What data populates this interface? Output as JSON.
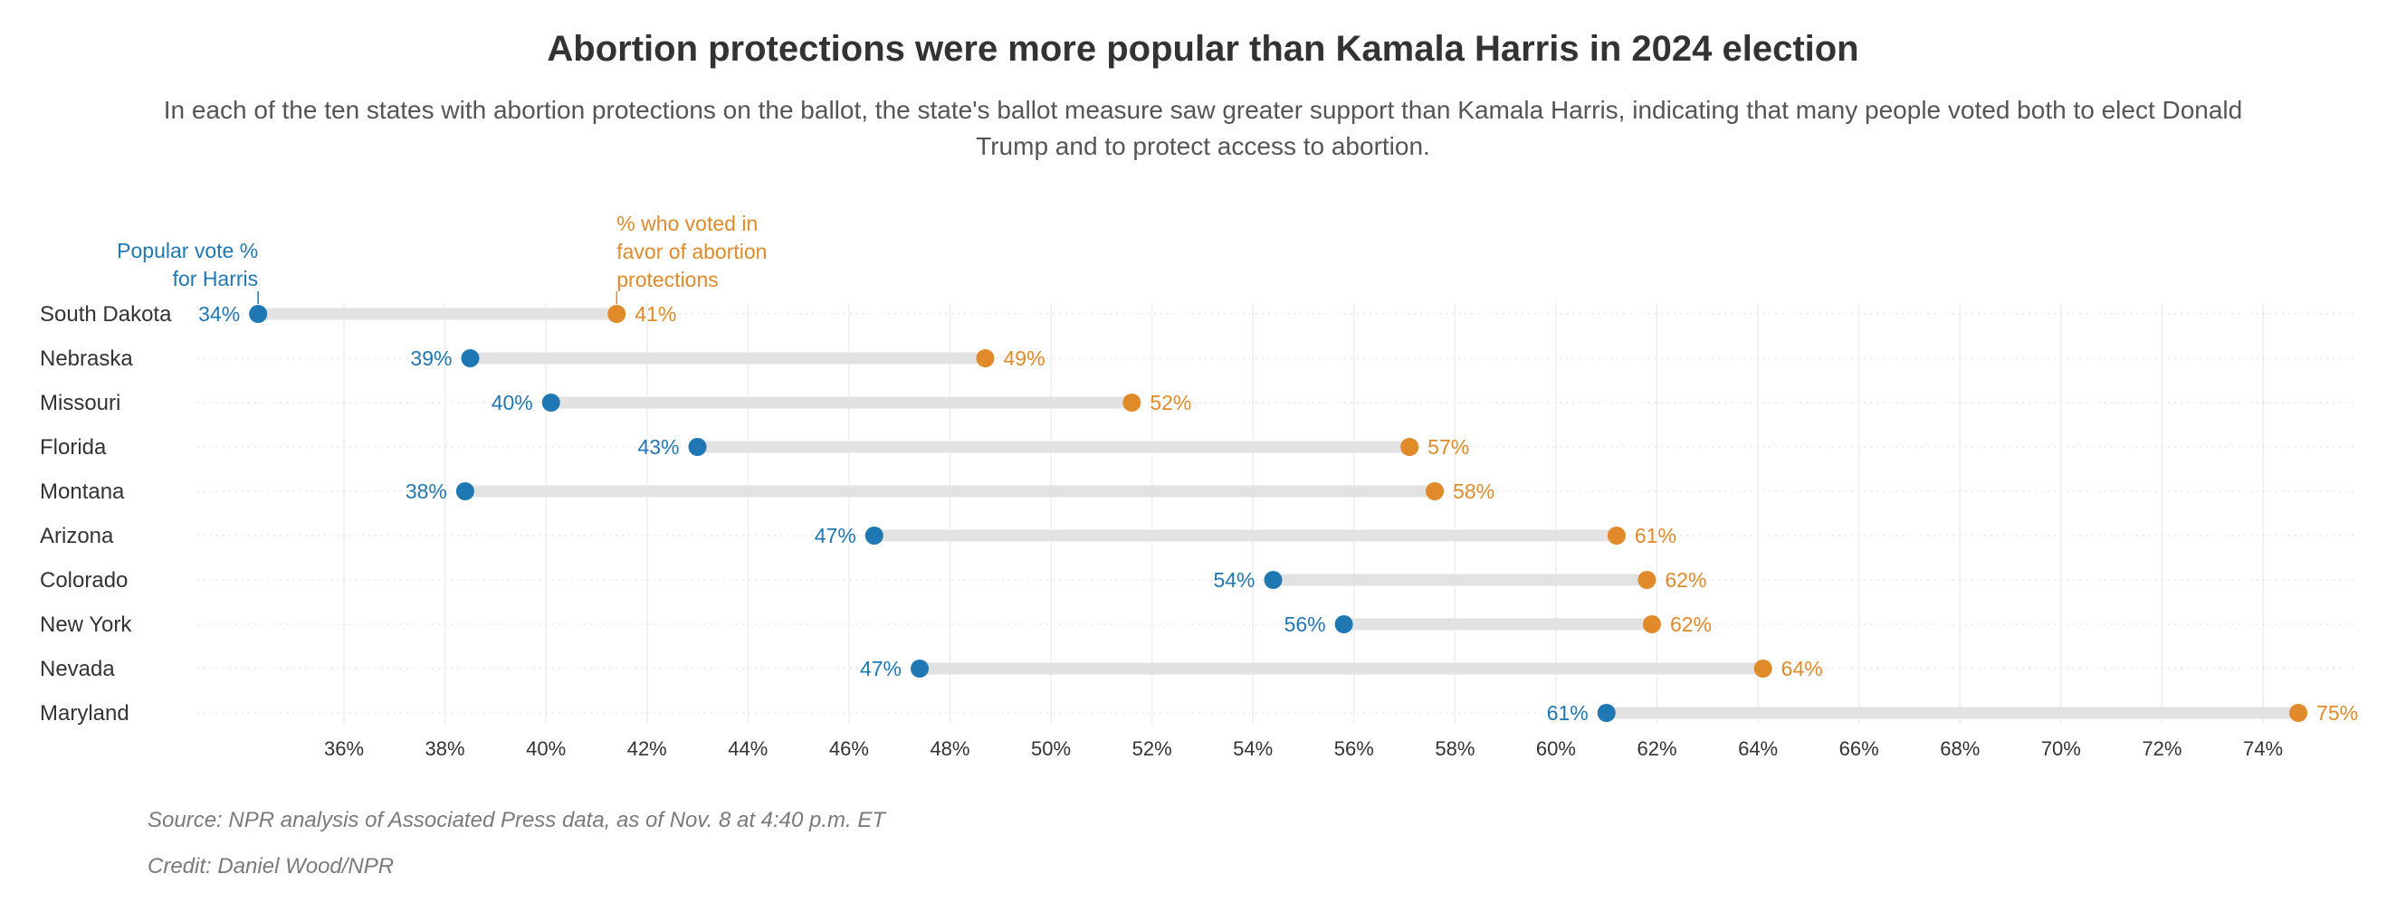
{
  "title": "Abortion protections were more popular than Kamala Harris in 2024 election",
  "subtitle": "In each of the ten states with abortion protections on the ballot, the state's ballot measure saw greater support than Kamala Harris, indicating that many people voted both to elect Donald Trump and to protect access to abortion.",
  "source": "Source: NPR analysis of Associated Press data, as of Nov. 8 at 4:40 p.m. ET",
  "credit": "Credit: Daniel Wood/NPR",
  "colors": {
    "harris": "#1f77b4",
    "measure": "#e08a2a",
    "bar": "#e2e2e2",
    "grid": "#eeeeee",
    "text": "#333333"
  },
  "chart_data": {
    "type": "dot-range",
    "series": [
      {
        "name": "Popular vote % for Harris",
        "label_lines": [
          "Popular vote %",
          "for Harris"
        ]
      },
      {
        "name": "% who voted in favor of abortion protections",
        "label_lines": [
          "% who voted in",
          "favor of abortion",
          "protections"
        ]
      }
    ],
    "xlim": [
      33,
      75
    ],
    "ticks": [
      36,
      38,
      40,
      42,
      44,
      46,
      48,
      50,
      52,
      54,
      56,
      58,
      60,
      62,
      64,
      66,
      68,
      70,
      72,
      74
    ],
    "tick_suffix": "%",
    "rows": [
      {
        "state": "South Dakota",
        "harris": 34.3,
        "harris_label": "34%",
        "measure": 41.4,
        "measure_label": "41%"
      },
      {
        "state": "Nebraska",
        "harris": 38.5,
        "harris_label": "39%",
        "measure": 48.7,
        "measure_label": "49%"
      },
      {
        "state": "Missouri",
        "harris": 40.1,
        "harris_label": "40%",
        "measure": 51.6,
        "measure_label": "52%"
      },
      {
        "state": "Florida",
        "harris": 43.0,
        "harris_label": "43%",
        "measure": 57.1,
        "measure_label": "57%"
      },
      {
        "state": "Montana",
        "harris": 38.4,
        "harris_label": "38%",
        "measure": 57.6,
        "measure_label": "58%"
      },
      {
        "state": "Arizona",
        "harris": 46.5,
        "harris_label": "47%",
        "measure": 61.2,
        "measure_label": "61%"
      },
      {
        "state": "Colorado",
        "harris": 54.4,
        "harris_label": "54%",
        "measure": 61.8,
        "measure_label": "62%"
      },
      {
        "state": "New York",
        "harris": 55.8,
        "harris_label": "56%",
        "measure": 61.9,
        "measure_label": "62%"
      },
      {
        "state": "Nevada",
        "harris": 47.4,
        "harris_label": "47%",
        "measure": 64.1,
        "measure_label": "64%"
      },
      {
        "state": "Maryland",
        "harris": 61.0,
        "harris_label": "61%",
        "measure": 74.7,
        "measure_label": "75%"
      }
    ]
  }
}
